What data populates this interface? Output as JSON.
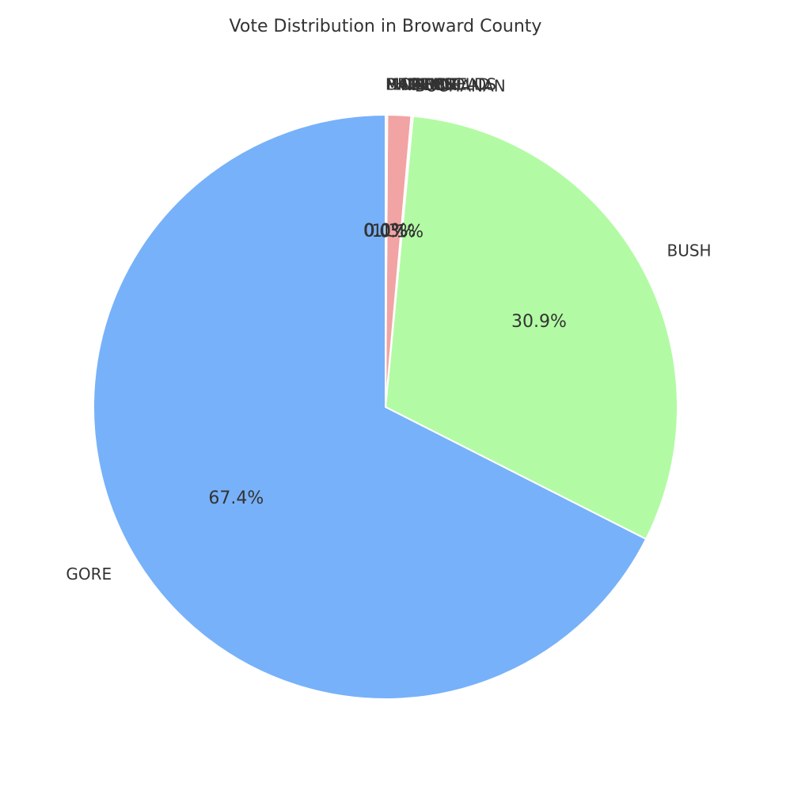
{
  "chart_data": {
    "type": "pie",
    "title": "Vote Distribution in Broward County",
    "labels": [
      "GORE",
      "BUSH",
      "BUCHANAN",
      "NADER",
      "BROWNE",
      "HAGELIN",
      "PHILLIPS",
      "MCREYNOLDS",
      "MOOREHEAD",
      "HARRIS"
    ],
    "values": [
      67.4,
      30.9,
      0.1,
      1.3,
      0.1,
      0.0,
      0.0,
      0.0,
      0.0,
      0.0
    ],
    "percent_labels": [
      "67.4%",
      "30.9%",
      "0.1%",
      "1.3%",
      "0.1%",
      "0.0%",
      "0.0%",
      "0.0%",
      "0.0%",
      "0.0%"
    ],
    "colors": [
      "#77b1f9",
      "#b2fba4",
      "#c9b9f2",
      "#f2a3a3",
      "#ffd9a8",
      "#bfe3f2",
      "#f5c8e8",
      "#d9f0c3",
      "#f3e6a6",
      "#d8d8f7"
    ],
    "start_angle": 90,
    "direction": "counterclockwise",
    "legend": "none"
  }
}
